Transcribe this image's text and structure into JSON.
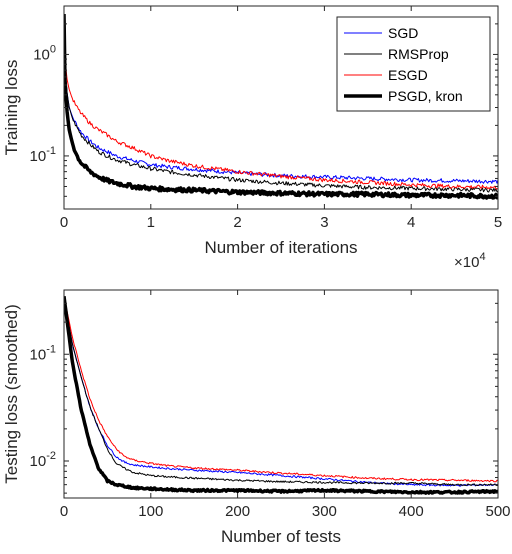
{
  "chart_data": [
    {
      "type": "line",
      "ylabel": "Training loss",
      "xlabel": "Number of iterations",
      "x_multiplier_label": "×10",
      "x_multiplier_exponent": "4",
      "x_ticks": [
        0,
        1,
        2,
        3,
        4,
        5
      ],
      "x_tick_labels": [
        "0",
        "1",
        "2",
        "3",
        "4",
        "5"
      ],
      "xlim": [
        0,
        50000
      ],
      "yscale": "log",
      "ylim": [
        0.03,
        3.0
      ],
      "y_ticks": [
        0.1,
        1.0
      ],
      "y_tick_base": "10",
      "y_tick_exponents": [
        "-1",
        "0"
      ],
      "legend_location": "top-right",
      "series": [
        {
          "name": "SGD",
          "color": "#0000ff",
          "width": 1,
          "x": [
            0,
            100,
            300,
            600,
            1000,
            1500,
            2000,
            3000,
            4000,
            5000,
            6000,
            8000,
            10000,
            12000,
            15000,
            20000,
            25000,
            30000,
            35000,
            40000,
            45000,
            50000
          ],
          "y": [
            2.5,
            0.8,
            0.45,
            0.3,
            0.24,
            0.2,
            0.17,
            0.14,
            0.12,
            0.11,
            0.1,
            0.09,
            0.082,
            0.078,
            0.074,
            0.068,
            0.064,
            0.062,
            0.06,
            0.058,
            0.057,
            0.056
          ]
        },
        {
          "name": "RMSProp",
          "color": "#000000",
          "width": 1,
          "x": [
            0,
            100,
            300,
            600,
            1000,
            1500,
            2000,
            3000,
            4000,
            5000,
            6000,
            8000,
            10000,
            12000,
            15000,
            20000,
            25000,
            30000,
            35000,
            40000,
            45000,
            50000
          ],
          "y": [
            2.5,
            0.8,
            0.45,
            0.3,
            0.23,
            0.19,
            0.16,
            0.13,
            0.11,
            0.1,
            0.092,
            0.082,
            0.075,
            0.07,
            0.065,
            0.058,
            0.054,
            0.051,
            0.049,
            0.048,
            0.047,
            0.046
          ]
        },
        {
          "name": "ESGD",
          "color": "#ff0000",
          "width": 1,
          "x": [
            0,
            100,
            300,
            600,
            1000,
            1500,
            2000,
            3000,
            4000,
            5000,
            6000,
            8000,
            10000,
            12000,
            15000,
            20000,
            25000,
            30000,
            35000,
            40000,
            45000,
            50000
          ],
          "y": [
            2.5,
            1.0,
            0.6,
            0.45,
            0.36,
            0.3,
            0.26,
            0.21,
            0.18,
            0.16,
            0.14,
            0.12,
            0.1,
            0.09,
            0.08,
            0.07,
            0.063,
            0.058,
            0.055,
            0.052,
            0.05,
            0.049
          ]
        },
        {
          "name": "PSGD, kron",
          "color": "#000000",
          "width": 3.5,
          "x": [
            0,
            100,
            300,
            600,
            1000,
            1500,
            2000,
            3000,
            4000,
            5000,
            6000,
            8000,
            10000,
            12000,
            15000,
            20000,
            25000,
            30000,
            35000,
            40000,
            45000,
            50000
          ],
          "y": [
            2.5,
            0.6,
            0.3,
            0.18,
            0.13,
            0.1,
            0.085,
            0.07,
            0.062,
            0.057,
            0.054,
            0.05,
            0.048,
            0.047,
            0.046,
            0.044,
            0.043,
            0.042,
            0.042,
            0.041,
            0.041,
            0.04
          ]
        }
      ]
    },
    {
      "type": "line",
      "ylabel": "Testing loss (smoothed)",
      "xlabel": "Number of tests",
      "x_ticks": [
        0,
        100,
        200,
        300,
        400,
        500
      ],
      "x_tick_labels": [
        "0",
        "100",
        "200",
        "300",
        "400",
        "500"
      ],
      "xlim": [
        0,
        500
      ],
      "yscale": "log",
      "ylim": [
        0.0045,
        0.4
      ],
      "y_ticks": [
        0.01,
        0.1
      ],
      "y_tick_base": "10",
      "y_tick_exponents": [
        "-2",
        "-1"
      ],
      "series": [
        {
          "name": "SGD",
          "color": "#0000ff",
          "width": 1,
          "x": [
            0,
            10,
            20,
            30,
            40,
            50,
            60,
            70,
            80,
            100,
            120,
            150,
            200,
            250,
            300,
            350,
            400,
            450,
            500
          ],
          "y": [
            0.35,
            0.12,
            0.06,
            0.032,
            0.02,
            0.014,
            0.011,
            0.0097,
            0.0092,
            0.0088,
            0.0085,
            0.0082,
            0.0078,
            0.0073,
            0.0068,
            0.0063,
            0.006,
            0.0059,
            0.006
          ]
        },
        {
          "name": "RMSProp",
          "color": "#000000",
          "width": 1,
          "x": [
            0,
            10,
            20,
            30,
            40,
            50,
            60,
            70,
            80,
            100,
            120,
            150,
            200,
            250,
            300,
            350,
            400,
            450,
            500
          ],
          "y": [
            0.35,
            0.12,
            0.06,
            0.032,
            0.02,
            0.013,
            0.0095,
            0.0085,
            0.0078,
            0.0073,
            0.0071,
            0.0069,
            0.0066,
            0.0064,
            0.0063,
            0.0062,
            0.0062,
            0.006,
            0.006
          ]
        },
        {
          "name": "ESGD",
          "color": "#ff0000",
          "width": 1,
          "x": [
            0,
            10,
            20,
            30,
            40,
            50,
            60,
            70,
            80,
            100,
            120,
            150,
            200,
            250,
            300,
            350,
            400,
            450,
            500
          ],
          "y": [
            0.35,
            0.14,
            0.07,
            0.038,
            0.024,
            0.017,
            0.013,
            0.011,
            0.0102,
            0.0095,
            0.009,
            0.0086,
            0.0082,
            0.0077,
            0.0073,
            0.0069,
            0.0067,
            0.0066,
            0.0065
          ]
        },
        {
          "name": "PSGD, kron",
          "color": "#000000",
          "width": 3.5,
          "x": [
            0,
            10,
            20,
            30,
            40,
            50,
            60,
            70,
            80,
            100,
            120,
            150,
            200,
            250,
            300,
            350,
            400,
            450,
            500
          ],
          "y": [
            0.35,
            0.08,
            0.03,
            0.014,
            0.0085,
            0.0065,
            0.006,
            0.0058,
            0.0056,
            0.0055,
            0.0054,
            0.0053,
            0.0053,
            0.0052,
            0.0053,
            0.0052,
            0.0051,
            0.0051,
            0.0052
          ]
        }
      ]
    }
  ]
}
